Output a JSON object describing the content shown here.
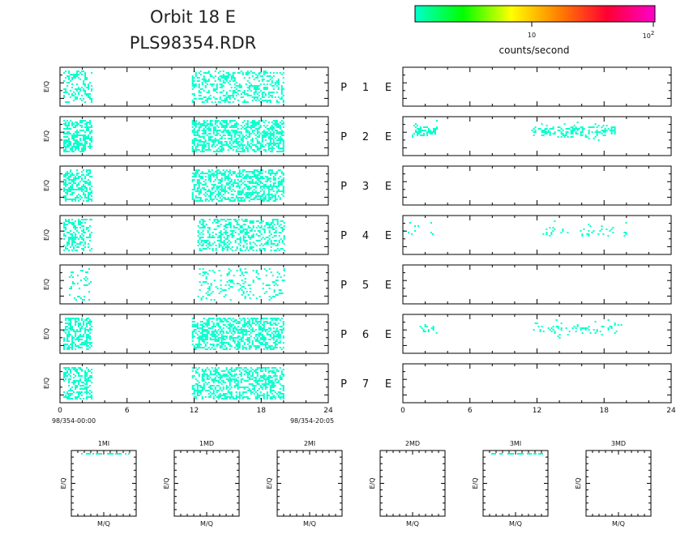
{
  "title": {
    "line1": "Orbit 18 E",
    "line2": "PLS98354.RDR"
  },
  "colorbar": {
    "label": "counts/second",
    "tick_10": "10",
    "tick_100_base": "10",
    "tick_100_exp": "2",
    "stops": [
      "#00ffcc",
      "#00ff00",
      "#ffff00",
      "#ff8000",
      "#ff0033",
      "#ff00cc"
    ]
  },
  "panel_labels": [
    {
      "prefix": "P",
      "num": "1",
      "suffix": "E"
    },
    {
      "prefix": "P",
      "num": "2",
      "suffix": "E"
    },
    {
      "prefix": "P",
      "num": "3",
      "suffix": "E"
    },
    {
      "prefix": "P",
      "num": "4",
      "suffix": "E"
    },
    {
      "prefix": "P",
      "num": "5",
      "suffix": "E"
    },
    {
      "prefix": "P",
      "num": "6",
      "suffix": "E"
    },
    {
      "prefix": "P",
      "num": "7",
      "suffix": "E"
    }
  ],
  "left_ylabel": "E/Q",
  "time_start_label": "98/354-00:00",
  "time_end_label": "98/354-20:05",
  "x_ticks": [
    "0",
    "6",
    "12",
    "18",
    "24"
  ],
  "mass_panels": [
    {
      "title": "1MI",
      "xlabel": "M/Q",
      "ylabel": "E/Q"
    },
    {
      "title": "1MD",
      "xlabel": "M/Q",
      "ylabel": "E/Q"
    },
    {
      "title": "2MI",
      "xlabel": "M/Q",
      "ylabel": "E/Q"
    },
    {
      "title": "2MD",
      "xlabel": "M/Q",
      "ylabel": "E/Q"
    },
    {
      "title": "3MI",
      "xlabel": "M/Q",
      "ylabel": "E/Q"
    },
    {
      "title": "3MD",
      "xlabel": "M/Q",
      "ylabel": "E/Q"
    }
  ],
  "chart_data": {
    "type": "heatmap",
    "xlim": [
      0,
      24
    ],
    "x_unit": "hours",
    "data_color": "#00ffcc",
    "left_column": [
      {
        "panel": "P 1 E",
        "ranges": [
          [
            0.3,
            2.8
          ],
          [
            11.8,
            20.0
          ]
        ],
        "density": 0.35
      },
      {
        "panel": "P 2 E",
        "ranges": [
          [
            0.3,
            2.8
          ],
          [
            11.8,
            20.0
          ]
        ],
        "density": 0.55
      },
      {
        "panel": "P 3 E",
        "ranges": [
          [
            0.3,
            2.8
          ],
          [
            11.8,
            20.0
          ]
        ],
        "density": 0.5
      },
      {
        "panel": "P 4 E",
        "ranges": [
          [
            0.3,
            2.8
          ],
          [
            12.3,
            20.0
          ]
        ],
        "density": 0.35
      },
      {
        "panel": "P 5 E",
        "ranges": [
          [
            0.8,
            2.8
          ],
          [
            12.3,
            20.0
          ]
        ],
        "density": 0.15
      },
      {
        "panel": "P 6 E",
        "ranges": [
          [
            0.3,
            2.8
          ],
          [
            11.8,
            20.0
          ]
        ],
        "density": 0.5
      },
      {
        "panel": "P 7 E",
        "ranges": [
          [
            0.3,
            2.8
          ],
          [
            11.8,
            20.0
          ]
        ],
        "density": 0.45
      }
    ],
    "right_column": [
      {
        "panel": "P 1 E",
        "ranges": [],
        "density": 0
      },
      {
        "panel": "P 2 E",
        "ranges": [
          [
            0.8,
            3.0
          ],
          [
            11.5,
            19.0
          ]
        ],
        "density": 0.5
      },
      {
        "panel": "P 3 E",
        "ranges": [],
        "density": 0
      },
      {
        "panel": "P 4 E",
        "ranges": [
          [
            0.0,
            3.0
          ],
          [
            12.5,
            20.0
          ]
        ],
        "density": 0.15
      },
      {
        "panel": "P 5 E",
        "ranges": [],
        "density": 0
      },
      {
        "panel": "P 6 E",
        "ranges": [
          [
            1.5,
            3.0
          ],
          [
            11.5,
            19.5
          ]
        ],
        "density": 0.25
      },
      {
        "panel": "P 7 E",
        "ranges": [],
        "density": 0
      }
    ],
    "mass_panels_data": [
      {
        "panel": "1MI",
        "counts_near_top": true
      },
      {
        "panel": "1MD",
        "counts_near_top": false
      },
      {
        "panel": "2MI",
        "counts_near_top": false
      },
      {
        "panel": "2MD",
        "counts_near_top": false
      },
      {
        "panel": "3MI",
        "counts_near_top": true
      },
      {
        "panel": "3MD",
        "counts_near_top": false
      }
    ]
  }
}
